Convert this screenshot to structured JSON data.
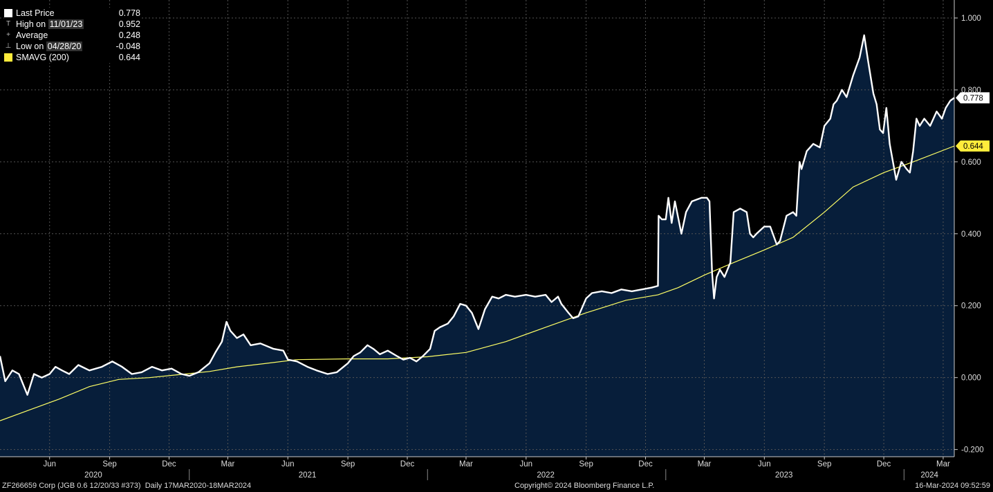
{
  "footer": {
    "ticker": "ZF266659 Corp (JGB 0.6 12/20/33 #373)",
    "range": "Daily 17MAR2020-18MAR2024",
    "copyright": "Copyright© 2024 Bloomberg Finance L.P.",
    "timestamp": "16-Mar-2024 09:52:59"
  },
  "legend": {
    "last_label": "Last Price",
    "last_value": "0.778",
    "high_label": "High on",
    "high_date": "11/01/23",
    "high_value": "0.952",
    "avg_label": "Average",
    "avg_value": "0.248",
    "low_label": "Low on",
    "low_date": "04/28/20",
    "low_value": "-0.048",
    "sma_label": "SMAVG (200)",
    "sma_value": "0.644"
  },
  "colors": {
    "background": "#000000",
    "area": "#071e3a",
    "price": "#ffffff",
    "sma": "#ffff66",
    "grid": "#555555"
  },
  "chart_data": {
    "type": "area",
    "y_ticks": [
      "1.000",
      "0.800",
      "0.600",
      "0.400",
      "0.200",
      "0.000",
      "-0.200"
    ],
    "ylim": [
      -0.22,
      1.05
    ],
    "xlim": [
      "2020-03-17",
      "2024-03-18"
    ],
    "grid": true,
    "month_ticks": [
      {
        "label": "Jun",
        "date": "2020-06-01"
      },
      {
        "label": "Sep",
        "date": "2020-09-01"
      },
      {
        "label": "Dec",
        "date": "2020-12-01"
      },
      {
        "label": "Mar",
        "date": "2021-03-01"
      },
      {
        "label": "Jun",
        "date": "2021-06-01"
      },
      {
        "label": "Sep",
        "date": "2021-09-01"
      },
      {
        "label": "Dec",
        "date": "2021-12-01"
      },
      {
        "label": "Mar",
        "date": "2022-03-01"
      },
      {
        "label": "Jun",
        "date": "2022-06-01"
      },
      {
        "label": "Sep",
        "date": "2022-09-01"
      },
      {
        "label": "Dec",
        "date": "2022-12-01"
      },
      {
        "label": "Mar",
        "date": "2023-03-01"
      },
      {
        "label": "Jun",
        "date": "2023-06-01"
      },
      {
        "label": "Sep",
        "date": "2023-09-01"
      },
      {
        "label": "Dec",
        "date": "2023-12-01"
      },
      {
        "label": "Mar",
        "date": "2024-03-01"
      }
    ],
    "year_labels": [
      {
        "label": "2020",
        "date": "2020-08-07"
      },
      {
        "label": "2021",
        "date": "2021-07-01"
      },
      {
        "label": "2022",
        "date": "2022-07-01"
      },
      {
        "label": "2023",
        "date": "2023-07-01"
      },
      {
        "label": "2024",
        "date": "2024-02-09"
      }
    ],
    "year_dividers": [
      "2021-01-01",
      "2022-01-01",
      "2023-01-01",
      "2024-01-01"
    ],
    "series": [
      {
        "name": "Last Price",
        "points": [
          [
            "2020-03-17",
            0.06
          ],
          [
            "2020-03-25",
            -0.01
          ],
          [
            "2020-04-05",
            0.02
          ],
          [
            "2020-04-15",
            0.01
          ],
          [
            "2020-04-28",
            -0.048
          ],
          [
            "2020-05-08",
            0.01
          ],
          [
            "2020-05-20",
            0.0
          ],
          [
            "2020-06-01",
            0.01
          ],
          [
            "2020-06-10",
            0.03
          ],
          [
            "2020-06-20",
            0.02
          ],
          [
            "2020-07-01",
            0.01
          ],
          [
            "2020-07-15",
            0.035
          ],
          [
            "2020-08-01",
            0.02
          ],
          [
            "2020-08-20",
            0.03
          ],
          [
            "2020-09-05",
            0.045
          ],
          [
            "2020-09-20",
            0.03
          ],
          [
            "2020-10-05",
            0.01
          ],
          [
            "2020-10-20",
            0.015
          ],
          [
            "2020-11-05",
            0.03
          ],
          [
            "2020-11-20",
            0.02
          ],
          [
            "2020-12-05",
            0.025
          ],
          [
            "2020-12-20",
            0.01
          ],
          [
            "2021-01-01",
            0.005
          ],
          [
            "2021-01-15",
            0.015
          ],
          [
            "2021-02-01",
            0.04
          ],
          [
            "2021-02-10",
            0.07
          ],
          [
            "2021-02-20",
            0.1
          ],
          [
            "2021-02-27",
            0.155
          ],
          [
            "2021-03-05",
            0.13
          ],
          [
            "2021-03-15",
            0.11
          ],
          [
            "2021-03-25",
            0.12
          ],
          [
            "2021-04-05",
            0.09
          ],
          [
            "2021-04-20",
            0.095
          ],
          [
            "2021-05-10",
            0.08
          ],
          [
            "2021-05-25",
            0.075
          ],
          [
            "2021-06-01",
            0.05
          ],
          [
            "2021-06-15",
            0.045
          ],
          [
            "2021-07-01",
            0.03
          ],
          [
            "2021-07-15",
            0.02
          ],
          [
            "2021-08-01",
            0.01
          ],
          [
            "2021-08-15",
            0.015
          ],
          [
            "2021-09-01",
            0.04
          ],
          [
            "2021-09-10",
            0.06
          ],
          [
            "2021-09-20",
            0.07
          ],
          [
            "2021-10-01",
            0.09
          ],
          [
            "2021-10-10",
            0.08
          ],
          [
            "2021-10-20",
            0.065
          ],
          [
            "2021-11-01",
            0.075
          ],
          [
            "2021-11-15",
            0.06
          ],
          [
            "2021-11-25",
            0.05
          ],
          [
            "2021-12-05",
            0.055
          ],
          [
            "2021-12-15",
            0.045
          ],
          [
            "2021-12-25",
            0.06
          ],
          [
            "2022-01-05",
            0.08
          ],
          [
            "2022-01-12",
            0.13
          ],
          [
            "2022-01-20",
            0.14
          ],
          [
            "2022-02-01",
            0.15
          ],
          [
            "2022-02-10",
            0.17
          ],
          [
            "2022-02-20",
            0.205
          ],
          [
            "2022-03-01",
            0.2
          ],
          [
            "2022-03-10",
            0.18
          ],
          [
            "2022-03-20",
            0.135
          ],
          [
            "2022-03-30",
            0.19
          ],
          [
            "2022-04-10",
            0.225
          ],
          [
            "2022-04-20",
            0.22
          ],
          [
            "2022-05-01",
            0.23
          ],
          [
            "2022-05-15",
            0.225
          ],
          [
            "2022-06-01",
            0.23
          ],
          [
            "2022-06-15",
            0.225
          ],
          [
            "2022-07-01",
            0.23
          ],
          [
            "2022-07-10",
            0.21
          ],
          [
            "2022-07-20",
            0.225
          ],
          [
            "2022-07-25",
            0.205
          ],
          [
            "2022-08-05",
            0.18
          ],
          [
            "2022-08-12",
            0.165
          ],
          [
            "2022-08-20",
            0.17
          ],
          [
            "2022-09-01",
            0.22
          ],
          [
            "2022-09-10",
            0.235
          ],
          [
            "2022-09-25",
            0.24
          ],
          [
            "2022-10-10",
            0.235
          ],
          [
            "2022-10-25",
            0.245
          ],
          [
            "2022-11-10",
            0.24
          ],
          [
            "2022-11-25",
            0.245
          ],
          [
            "2022-12-10",
            0.25
          ],
          [
            "2022-12-20",
            0.255
          ],
          [
            "2022-12-21",
            0.45
          ],
          [
            "2022-12-26",
            0.44
          ],
          [
            "2023-01-01",
            0.44
          ],
          [
            "2023-01-05",
            0.5
          ],
          [
            "2023-01-10",
            0.43
          ],
          [
            "2023-01-15",
            0.49
          ],
          [
            "2023-01-25",
            0.4
          ],
          [
            "2023-02-01",
            0.46
          ],
          [
            "2023-02-10",
            0.49
          ],
          [
            "2023-02-25",
            0.5
          ],
          [
            "2023-03-05",
            0.5
          ],
          [
            "2023-03-09",
            0.49
          ],
          [
            "2023-03-13",
            0.29
          ],
          [
            "2023-03-16",
            0.22
          ],
          [
            "2023-03-20",
            0.28
          ],
          [
            "2023-03-25",
            0.3
          ],
          [
            "2023-04-01",
            0.28
          ],
          [
            "2023-04-10",
            0.32
          ],
          [
            "2023-04-15",
            0.46
          ],
          [
            "2023-04-25",
            0.47
          ],
          [
            "2023-05-05",
            0.46
          ],
          [
            "2023-05-10",
            0.4
          ],
          [
            "2023-05-15",
            0.39
          ],
          [
            "2023-05-20",
            0.4
          ],
          [
            "2023-06-01",
            0.42
          ],
          [
            "2023-06-10",
            0.42
          ],
          [
            "2023-06-20",
            0.37
          ],
          [
            "2023-06-25",
            0.38
          ],
          [
            "2023-07-05",
            0.45
          ],
          [
            "2023-07-15",
            0.46
          ],
          [
            "2023-07-20",
            0.45
          ],
          [
            "2023-07-25",
            0.6
          ],
          [
            "2023-07-28",
            0.58
          ],
          [
            "2023-08-05",
            0.63
          ],
          [
            "2023-08-15",
            0.65
          ],
          [
            "2023-08-25",
            0.64
          ],
          [
            "2023-09-01",
            0.7
          ],
          [
            "2023-09-10",
            0.72
          ],
          [
            "2023-09-15",
            0.76
          ],
          [
            "2023-09-20",
            0.77
          ],
          [
            "2023-09-28",
            0.8
          ],
          [
            "2023-10-05",
            0.78
          ],
          [
            "2023-10-15",
            0.84
          ],
          [
            "2023-10-25",
            0.89
          ],
          [
            "2023-11-01",
            0.952
          ],
          [
            "2023-11-07",
            0.88
          ],
          [
            "2023-11-15",
            0.79
          ],
          [
            "2023-11-20",
            0.76
          ],
          [
            "2023-11-25",
            0.69
          ],
          [
            "2023-11-30",
            0.68
          ],
          [
            "2023-12-05",
            0.75
          ],
          [
            "2023-12-10",
            0.65
          ],
          [
            "2023-12-20",
            0.55
          ],
          [
            "2023-12-28",
            0.6
          ],
          [
            "2024-01-05",
            0.58
          ],
          [
            "2024-01-10",
            0.57
          ],
          [
            "2024-01-15",
            0.63
          ],
          [
            "2024-01-20",
            0.72
          ],
          [
            "2024-01-25",
            0.7
          ],
          [
            "2024-02-01",
            0.72
          ],
          [
            "2024-02-10",
            0.7
          ],
          [
            "2024-02-20",
            0.74
          ],
          [
            "2024-02-28",
            0.72
          ],
          [
            "2024-03-05",
            0.75
          ],
          [
            "2024-03-12",
            0.77
          ],
          [
            "2024-03-18",
            0.778
          ]
        ]
      },
      {
        "name": "SMAVG (200)",
        "points": [
          [
            "2020-03-17",
            -0.12
          ],
          [
            "2020-05-01",
            -0.09
          ],
          [
            "2020-06-15",
            -0.06
          ],
          [
            "2020-08-01",
            -0.025
          ],
          [
            "2020-09-15",
            -0.005
          ],
          [
            "2020-11-01",
            0.0
          ],
          [
            "2020-12-15",
            0.008
          ],
          [
            "2021-02-01",
            0.017
          ],
          [
            "2021-03-15",
            0.03
          ],
          [
            "2021-05-01",
            0.04
          ],
          [
            "2021-06-15",
            0.05
          ],
          [
            "2021-09-01",
            0.052
          ],
          [
            "2021-11-01",
            0.052
          ],
          [
            "2022-01-01",
            0.058
          ],
          [
            "2022-03-01",
            0.07
          ],
          [
            "2022-05-01",
            0.1
          ],
          [
            "2022-07-01",
            0.14
          ],
          [
            "2022-09-01",
            0.18
          ],
          [
            "2022-11-01",
            0.215
          ],
          [
            "2022-12-20",
            0.23
          ],
          [
            "2023-01-20",
            0.25
          ],
          [
            "2023-03-01",
            0.285
          ],
          [
            "2023-04-15",
            0.32
          ],
          [
            "2023-06-01",
            0.355
          ],
          [
            "2023-07-15",
            0.39
          ],
          [
            "2023-09-01",
            0.46
          ],
          [
            "2023-10-15",
            0.53
          ],
          [
            "2023-12-01",
            0.57
          ],
          [
            "2024-01-15",
            0.6
          ],
          [
            "2024-03-18",
            0.644
          ]
        ]
      }
    ]
  }
}
